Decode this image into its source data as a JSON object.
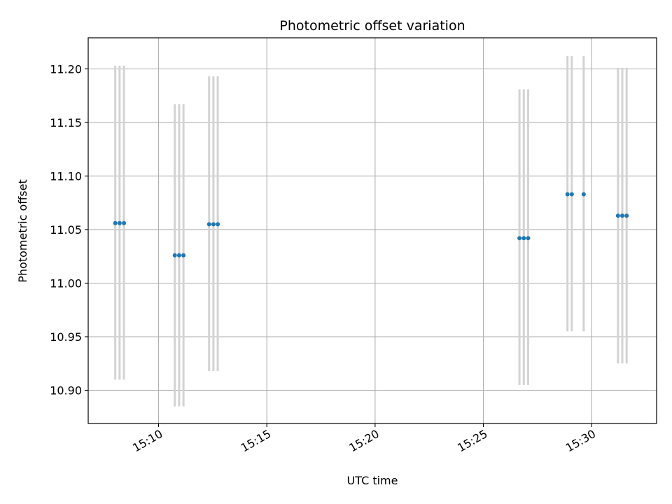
{
  "chart_data": {
    "type": "scatter",
    "title": "Photometric offset variation",
    "xlabel": "UTC time",
    "ylabel": "Photometric offset",
    "xlim": [
      "15:06:45",
      "15:33:00"
    ],
    "ylim": [
      10.869,
      11.229
    ],
    "x_ticks": [
      "15:10",
      "15:15",
      "15:20",
      "15:25",
      "15:30"
    ],
    "y_ticks": [
      "10.90",
      "10.95",
      "11.00",
      "11.05",
      "11.10",
      "11.15",
      "11.20"
    ],
    "grid": true,
    "marker_color": "#1f77b4",
    "errorbar_color": "#d3d3d3",
    "points": [
      {
        "x": "15:08:00",
        "y": 11.056,
        "yerr_low": 10.91,
        "yerr_high": 11.203
      },
      {
        "x": "15:08:12",
        "y": 11.056,
        "yerr_low": 10.91,
        "yerr_high": 11.203
      },
      {
        "x": "15:08:24",
        "y": 11.056,
        "yerr_low": 10.91,
        "yerr_high": 11.203
      },
      {
        "x": "15:10:45",
        "y": 11.026,
        "yerr_low": 10.885,
        "yerr_high": 11.167
      },
      {
        "x": "15:10:57",
        "y": 11.026,
        "yerr_low": 10.885,
        "yerr_high": 11.167
      },
      {
        "x": "15:11:09",
        "y": 11.026,
        "yerr_low": 10.885,
        "yerr_high": 11.167
      },
      {
        "x": "15:12:20",
        "y": 11.055,
        "yerr_low": 10.918,
        "yerr_high": 11.193
      },
      {
        "x": "15:12:32",
        "y": 11.055,
        "yerr_low": 10.918,
        "yerr_high": 11.193
      },
      {
        "x": "15:12:44",
        "y": 11.055,
        "yerr_low": 10.918,
        "yerr_high": 11.193
      },
      {
        "x": "15:26:40",
        "y": 11.042,
        "yerr_low": 10.905,
        "yerr_high": 11.181
      },
      {
        "x": "15:26:52",
        "y": 11.042,
        "yerr_low": 10.905,
        "yerr_high": 11.181
      },
      {
        "x": "15:27:04",
        "y": 11.042,
        "yerr_low": 10.905,
        "yerr_high": 11.181
      },
      {
        "x": "15:28:53",
        "y": 11.083,
        "yerr_low": 10.955,
        "yerr_high": 11.212
      },
      {
        "x": "15:29:05",
        "y": 11.083,
        "yerr_low": 10.955,
        "yerr_high": 11.212
      },
      {
        "x": "15:29:38",
        "y": 11.083,
        "yerr_low": 10.955,
        "yerr_high": 11.212
      },
      {
        "x": "15:31:13",
        "y": 11.063,
        "yerr_low": 10.925,
        "yerr_high": 11.201
      },
      {
        "x": "15:31:25",
        "y": 11.063,
        "yerr_low": 10.925,
        "yerr_high": 11.201
      },
      {
        "x": "15:31:37",
        "y": 11.063,
        "yerr_low": 10.925,
        "yerr_high": 11.201
      }
    ]
  }
}
